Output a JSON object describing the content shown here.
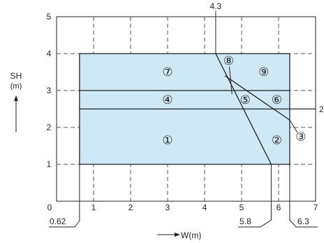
{
  "chart_data": {
    "type": "diagram",
    "x_axis": {
      "label": "W(m)",
      "range": [
        0,
        7
      ],
      "origin_label": "0",
      "tick_labels": [
        "1",
        "2",
        "3",
        "4",
        "5",
        "6",
        "7"
      ]
    },
    "y_axis": {
      "label_line1": "SH",
      "label_line2": "(m)",
      "range": [
        0,
        5
      ],
      "tick_labels": [
        "1",
        "2",
        "3",
        "4",
        "5"
      ]
    },
    "grid": "dashed",
    "region": {
      "x": [
        0.62,
        6.3
      ],
      "y": [
        1,
        4
      ],
      "fill": "#cfe8f5"
    },
    "horizontal_lines": [
      2.5,
      3
    ],
    "callouts": {
      "x_left": "0.62",
      "x_mid": "5.8",
      "x_right": "6.3",
      "x_top": "4.3",
      "y_right": "2"
    },
    "boundary_lines": [
      {
        "from": [
          4.3,
          4
        ],
        "to": [
          5.8,
          1
        ]
      },
      {
        "from": [
          4.55,
          3.4
        ],
        "to": [
          6.3,
          2.2
        ]
      }
    ],
    "zones": [
      {
        "label": "①",
        "x": 3.0,
        "y": 1.65
      },
      {
        "label": "②",
        "x": 5.95,
        "y": 1.65
      },
      {
        "label": "③",
        "x": 6.6,
        "y": 1.75
      },
      {
        "label": "④",
        "x": 3.0,
        "y": 2.75
      },
      {
        "label": "⑤",
        "x": 5.1,
        "y": 2.75
      },
      {
        "label": "⑥",
        "x": 5.95,
        "y": 2.75
      },
      {
        "label": "⑦",
        "x": 3.0,
        "y": 3.5
      },
      {
        "label": "⑧",
        "x": 4.65,
        "y": 3.8
      },
      {
        "label": "⑨",
        "x": 5.6,
        "y": 3.5
      }
    ]
  },
  "colors": {
    "fill": "#cfe8f5",
    "line": "#222222",
    "grid": "#555555"
  }
}
